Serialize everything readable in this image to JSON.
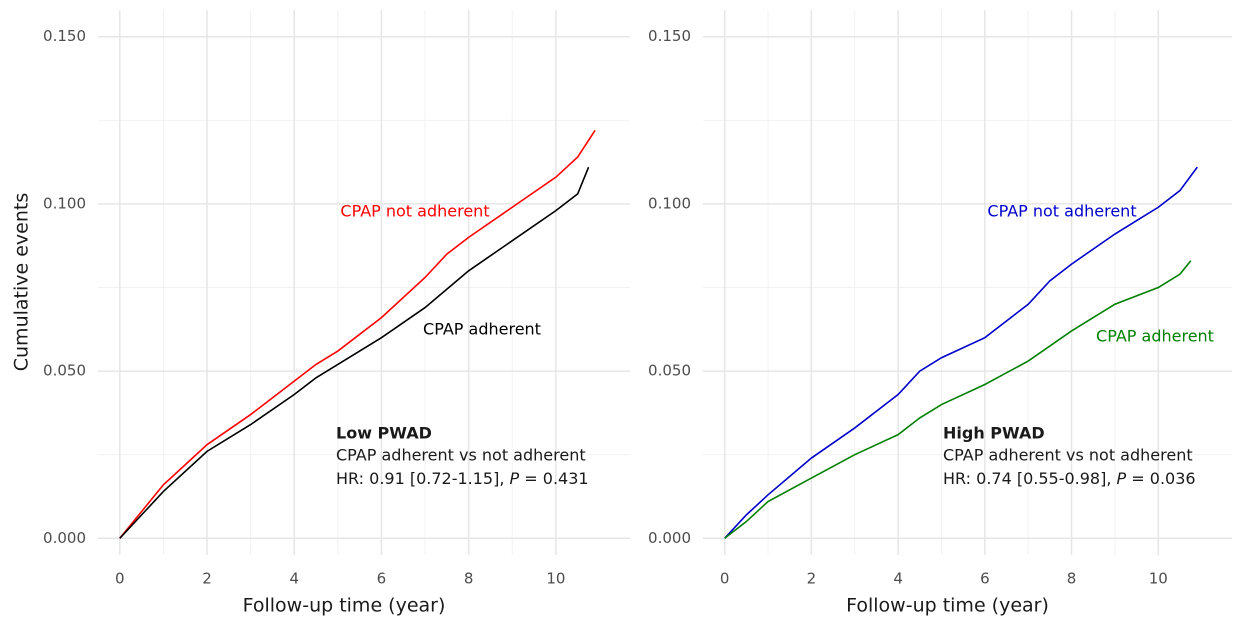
{
  "chart_data": [
    {
      "type": "line",
      "y_title": "Cumulative events",
      "x_title": "Follow-up time (year)",
      "xlim": [
        -0.5,
        11.7
      ],
      "ylim": [
        -0.005,
        0.158
      ],
      "xticks": [
        0,
        2,
        4,
        6,
        8,
        10
      ],
      "yticks": [
        {
          "value": 0,
          "label": "0.000"
        },
        {
          "value": 0.05,
          "label": "0.050"
        },
        {
          "value": 0.1,
          "label": "0.100"
        },
        {
          "value": 0.15,
          "label": "0.150"
        }
      ],
      "grid": true,
      "minor_grid": true,
      "series": [
        {
          "name": "CPAP not adherent",
          "color": "#ff0000",
          "x": [
            0,
            0.5,
            1,
            1.5,
            2,
            3,
            4,
            4.5,
            5,
            6,
            7,
            7.5,
            8,
            9,
            10,
            10.5,
            10.9
          ],
          "values": [
            0,
            0.008,
            0.016,
            0.022,
            0.028,
            0.037,
            0.047,
            0.052,
            0.056,
            0.066,
            0.078,
            0.085,
            0.09,
            0.099,
            0.108,
            0.114,
            0.122
          ]
        },
        {
          "name": "CPAP adherent",
          "color": "#000000",
          "x": [
            0,
            0.5,
            1,
            2,
            3,
            4,
            4.5,
            5,
            6,
            7,
            8,
            9,
            10,
            10.5,
            10.75
          ],
          "values": [
            0,
            0.007,
            0.014,
            0.026,
            0.034,
            0.043,
            0.048,
            0.052,
            0.06,
            0.069,
            0.08,
            0.089,
            0.098,
            0.103,
            0.111
          ]
        }
      ],
      "annotation": {
        "title": "Low PWAD",
        "line1": "CPAP adherent vs not adherent",
        "hr": "HR: 0.91 [0.72-1.15], ",
        "p_label": "P",
        "p_value": " = 0.431"
      }
    },
    {
      "type": "line",
      "x_title": "Follow-up time (year)",
      "xlim": [
        -0.5,
        11.7
      ],
      "ylim": [
        -0.005,
        0.158
      ],
      "xticks": [
        0,
        2,
        4,
        6,
        8,
        10
      ],
      "yticks": [
        {
          "value": 0,
          "label": "0.000"
        },
        {
          "value": 0.05,
          "label": "0.050"
        },
        {
          "value": 0.1,
          "label": "0.100"
        },
        {
          "value": 0.15,
          "label": "0.150"
        }
      ],
      "grid": true,
      "minor_grid": true,
      "series": [
        {
          "name": "CPAP not adherent",
          "color": "#0000cc",
          "x": [
            0,
            0.5,
            1,
            2,
            3,
            4,
            4.5,
            5,
            6,
            7,
            7.5,
            8,
            9,
            10,
            10.5,
            10.9
          ],
          "values": [
            0,
            0.007,
            0.013,
            0.024,
            0.033,
            0.043,
            0.05,
            0.054,
            0.06,
            0.07,
            0.077,
            0.082,
            0.091,
            0.099,
            0.104,
            0.111
          ]
        },
        {
          "name": "CPAP adherent",
          "color": "#008000",
          "x": [
            0,
            0.5,
            1,
            2,
            3,
            4,
            4.5,
            5,
            6,
            7,
            8,
            8.5,
            9,
            10,
            10.5,
            10.75
          ],
          "values": [
            0,
            0.005,
            0.011,
            0.018,
            0.025,
            0.031,
            0.036,
            0.04,
            0.046,
            0.053,
            0.062,
            0.066,
            0.07,
            0.075,
            0.079,
            0.083
          ]
        }
      ],
      "annotation": {
        "title": "High PWAD",
        "line1": "CPAP adherent vs not adherent",
        "hr": "HR: 0.74 [0.55-0.98], ",
        "p_label": "P",
        "p_value": " = 0.036"
      }
    }
  ]
}
